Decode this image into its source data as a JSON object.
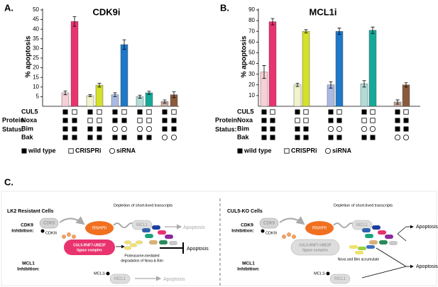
{
  "panels": {
    "a": "A.",
    "b": "B.",
    "c": "C."
  },
  "chart_data": [
    {
      "type": "bar",
      "title": "CDK9i",
      "y_label": "% apoptosis",
      "ylim": [
        0,
        50
      ],
      "yticks": [
        5,
        10,
        15,
        20,
        25,
        30,
        35,
        40,
        45,
        50
      ],
      "values": [
        7,
        44,
        5.5,
        11,
        6,
        32,
        5,
        7,
        2.5,
        6
      ],
      "errors": [
        1,
        2.5,
        0.5,
        1,
        1,
        2.5,
        0.8,
        0.8,
        0.8,
        1.5
      ],
      "colors": [
        "#f7cfd6",
        "#e8336f",
        "#f2f2cc",
        "#d4e02a",
        "#a9b9e2",
        "#1f78c8",
        "#b1dcd8",
        "#17a998",
        "#c4a698",
        "#8b5a3c"
      ],
      "status": {
        "heading": [
          "Protein",
          "Status:"
        ],
        "rows": [
          "CUL5",
          "Noxa",
          "Bim",
          "Bak"
        ],
        "legend": [
          "wild type",
          "CRISPRi",
          "siRNA"
        ]
      }
    },
    {
      "type": "bar",
      "title": "MCL1i",
      "y_label": "% apoptosis",
      "ylim": [
        0,
        90
      ],
      "yticks": [
        10,
        20,
        30,
        40,
        50,
        60,
        70,
        80,
        90
      ],
      "values": [
        32,
        79,
        20,
        70,
        20,
        70,
        21,
        71,
        4,
        20
      ],
      "errors": [
        6,
        3,
        1.5,
        1.5,
        3,
        3,
        3,
        3,
        2,
        2
      ],
      "colors": [
        "#f7cfd6",
        "#e8336f",
        "#f2f2cc",
        "#d4e02a",
        "#a9b9e2",
        "#1f78c8",
        "#b1dcd8",
        "#17a998",
        "#c4a698",
        "#8b5a3c"
      ],
      "status": {
        "heading": [
          "Protein",
          "Status:"
        ],
        "rows": [
          "CUL5",
          "Noxa",
          "Bim",
          "Bak"
        ],
        "legend": [
          "wild type",
          "CRISPRi",
          "siRNA"
        ]
      }
    }
  ],
  "diagram": {
    "left": {
      "title": "LK2 Resistant Cells",
      "cdk9_inhibition": [
        "CDK9",
        "Inhibition:"
      ],
      "cdk9": "CDK9",
      "cdk9i": "CDK9i",
      "rnapii": "RNAPII",
      "depletion": "Depletion of short-lived transcripts",
      "mcl1_top": "MCL1",
      "apoptosis_top": "Apoptosis",
      "ligase": [
        "CUL5-RNF7-UBE2F",
        "ligase complex"
      ],
      "fate": [
        "Proteasome-mediated",
        "degradation of Noxa & Bim"
      ],
      "apoptosis_mid": "Apoptosis",
      "mcl1_inhibition": [
        "MCL1",
        "Inhibition:"
      ],
      "mcl1i": "MCL1i",
      "mcl1_bottom": "MCL1",
      "apoptosis_bottom": "Apoptosis"
    },
    "right": {
      "title": "CUL5-KO Cells",
      "cdk9_inhibition": [
        "CDK9",
        "Inhibition:"
      ],
      "cdk9": "CDK9",
      "cdk9i": "CDK9i",
      "rnapii": "RNAPII",
      "depletion": "Depletion of short-lived transcripts",
      "mcl1_top": "MCL1",
      "apoptosis_top": "Apoptosis",
      "ligase": [
        "CUL5-RNF7-UBE2F",
        "ligase complex"
      ],
      "fate": [
        "Noxa and Bim accumulate"
      ],
      "mcl1_inhibition": [
        "MCL1",
        "Inhibition:"
      ],
      "mcl1i": "MCL1i",
      "mcl1_bottom": "MCL1",
      "apoptosis_bottom": "Apoptosis"
    }
  }
}
